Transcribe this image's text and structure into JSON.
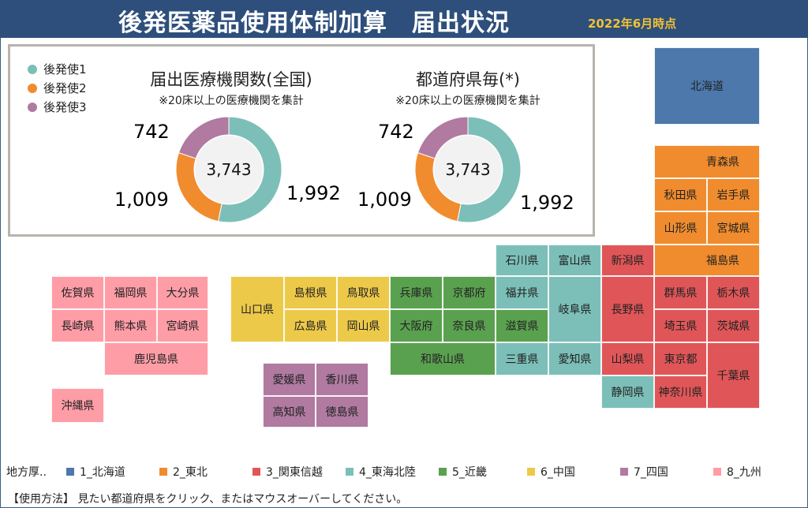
{
  "header": {
    "title": "後発医薬品使用体制加算　届出状況",
    "as_of": "2022年6月時点"
  },
  "legend": [
    {
      "label": "後発使1",
      "color": "#7cbfb8"
    },
    {
      "label": "後発使2",
      "color": "#f08c2e"
    },
    {
      "label": "後発使3",
      "color": "#b07aa1"
    }
  ],
  "chart_data": [
    {
      "type": "pie",
      "title": "届出医療機関数(全国)",
      "subtitle": "※20床以上の医療機関を集計",
      "center_label": "3,743",
      "categories": [
        "後発使1",
        "後発使2",
        "後発使3"
      ],
      "values": [
        1992,
        1009,
        742
      ],
      "value_labels": [
        "1,992",
        "1,009",
        "742"
      ],
      "colors": [
        "#7cbfb8",
        "#f08c2e",
        "#b07aa1"
      ]
    },
    {
      "type": "pie",
      "title": "都道府県毎(*)",
      "subtitle": "※20床以上の医療機関を集計",
      "center_label": "3,743",
      "categories": [
        "後発使1",
        "後発使2",
        "後発使3"
      ],
      "values": [
        1992,
        1009,
        742
      ],
      "value_labels": [
        "1,992",
        "1,009",
        "742"
      ],
      "colors": [
        "#7cbfb8",
        "#f08c2e",
        "#b07aa1"
      ]
    }
  ],
  "prefectures": {
    "hokkaido": "北海道",
    "aomori": "青森県",
    "akita": "秋田県",
    "iwate": "岩手県",
    "yamagata": "山形県",
    "miyagi": "宮城県",
    "ishikawa": "石川県",
    "toyama": "富山県",
    "niigata": "新潟県",
    "fukushima": "福島県",
    "gunma": "群馬県",
    "tochigi": "栃木県",
    "fukui": "福井県",
    "gifu": "岐阜県",
    "nagano": "長野県",
    "saitama": "埼玉県",
    "ibaraki": "茨城県",
    "shiga": "滋賀県",
    "mie": "三重県",
    "aichi": "愛知県",
    "yamanashi": "山梨県",
    "tokyo": "東京都",
    "chiba": "千葉県",
    "shizuoka": "静岡県",
    "kanagawa": "神奈川県",
    "hyogo": "兵庫県",
    "kyoto": "京都府",
    "osaka": "大阪府",
    "nara": "奈良県",
    "wakayama": "和歌山県",
    "yamaguchi": "山口県",
    "shimane": "島根県",
    "tottori": "鳥取県",
    "hiroshima": "広島県",
    "okayama": "岡山県",
    "ehime": "愛媛県",
    "kagawa": "香川県",
    "kochi": "高知県",
    "tokushima": "徳島県",
    "saga": "佐賀県",
    "fukuoka": "福岡県",
    "oita": "大分県",
    "nagasaki": "長崎県",
    "kumamoto": "熊本県",
    "miyazaki": "宮崎県",
    "kagoshima": "鹿児島県",
    "okinawa": "沖縄県"
  },
  "region_legend": {
    "label": "地方厚..",
    "items": [
      {
        "label": "1_北海道",
        "color": "#4c78ab"
      },
      {
        "label": "2_東北",
        "color": "#f08c2e"
      },
      {
        "label": "3_関東信越",
        "color": "#e05658"
      },
      {
        "label": "4_東海北陸",
        "color": "#7cbfb8"
      },
      {
        "label": "5_近畿",
        "color": "#5aa14f"
      },
      {
        "label": "6_中国",
        "color": "#edc949"
      },
      {
        "label": "7_四国",
        "color": "#b07aa1"
      },
      {
        "label": "8_九州",
        "color": "#ff9da7"
      }
    ]
  },
  "usage": "【使用方法】 見たい都道府県をクリック、またはマウスオーバーしてください。"
}
